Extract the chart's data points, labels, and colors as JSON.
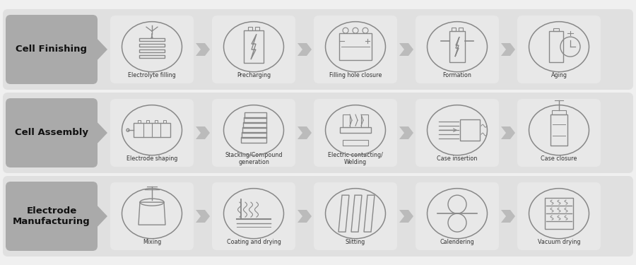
{
  "bg_color": "#f0f0f0",
  "row_bg": "#e0e0e0",
  "card_bg": "#e8e8e8",
  "label_bg": "#aaaaaa",
  "icon_color": "#888888",
  "icon_lw": 1.0,
  "text_color": "#333333",
  "label_text_color": "#111111",
  "arrow_color": "#bbbbbb",
  "rows": [
    {
      "label": "Electrode\nManufacturing",
      "steps": [
        "Mixing",
        "Coating and drying",
        "Slitting",
        "Calendering",
        "Vacuum drying"
      ]
    },
    {
      "label": "Cell Assembly",
      "steps": [
        "Electrode shaping",
        "Stacking/Compound\ngeneration",
        "Electric contacting/\nWelding",
        "Case insertion",
        "Case closure"
      ]
    },
    {
      "label": "Cell Finishing",
      "steps": [
        "Electrolyte filling",
        "Precharging",
        "Filling hole closure",
        "Formation",
        "Aging"
      ]
    }
  ],
  "fig_width": 9.0,
  "fig_height": 3.75,
  "dpi": 100
}
